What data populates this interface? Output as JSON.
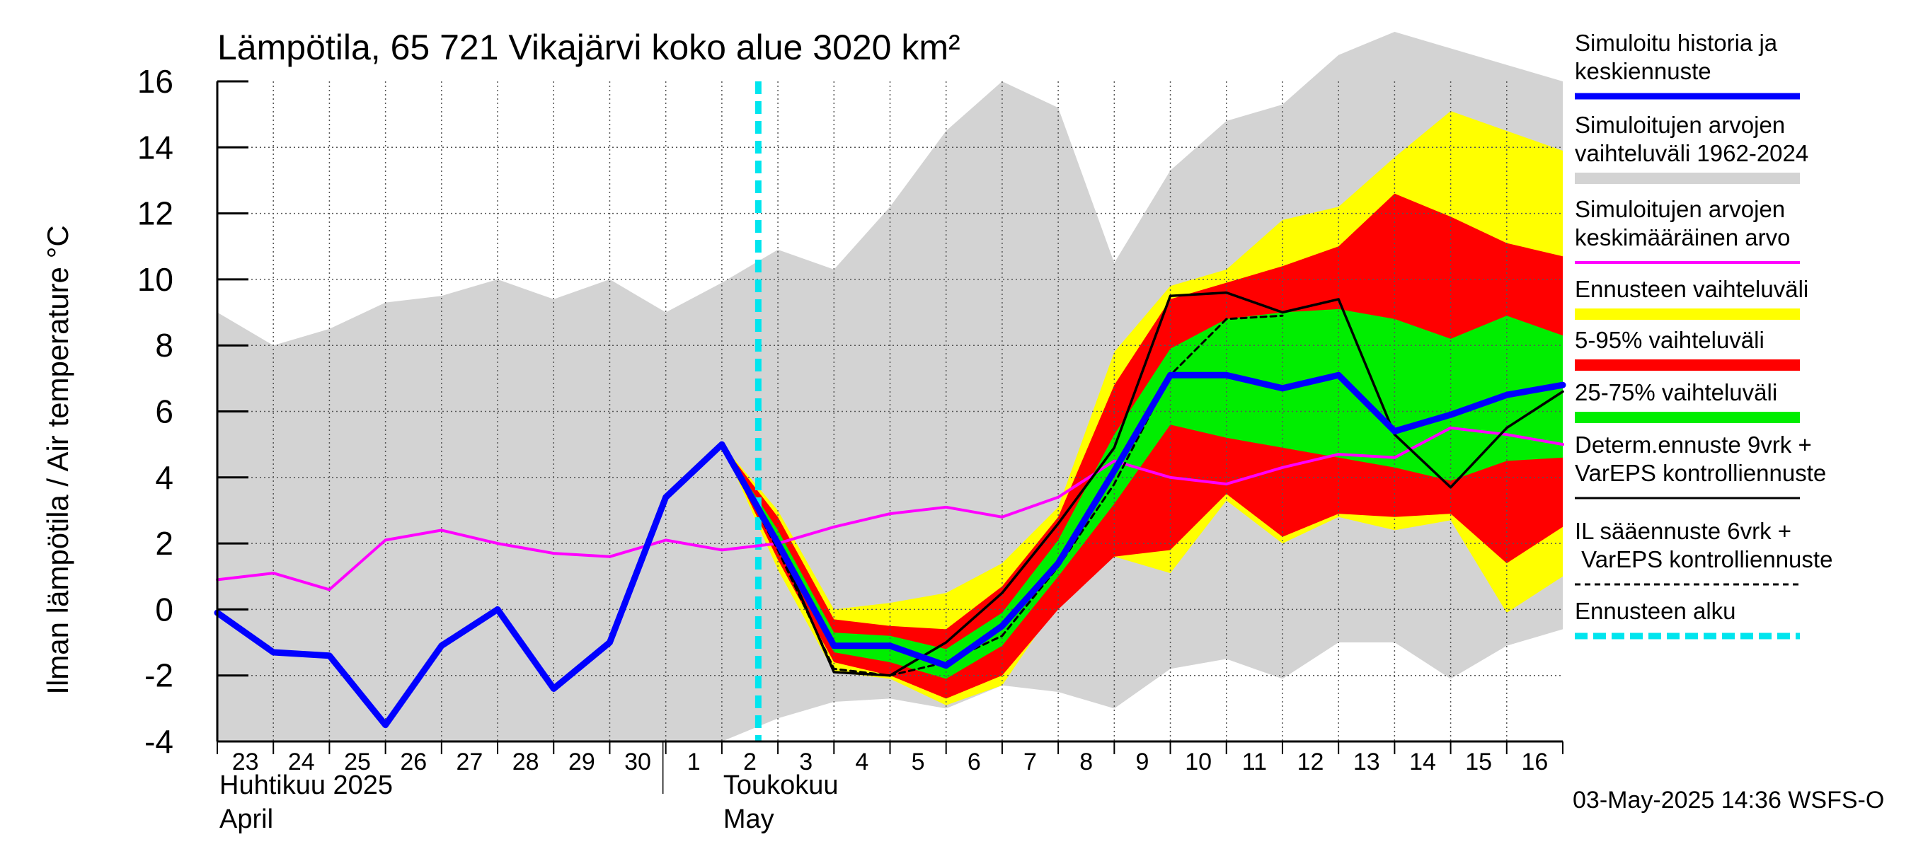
{
  "chart_data": {
    "type": "area",
    "title": "Lämpötila, 65 721 Vikajärvi koko alue 3020 km²",
    "ylabel": "Ilman lämpötila / Air temperature   °C",
    "ylim": [
      -4,
      16
    ],
    "yticks": [
      -4,
      -2,
      0,
      2,
      4,
      6,
      8,
      10,
      12,
      14,
      16
    ],
    "grid": true,
    "legend_position": "right",
    "x_day_labels": [
      "23",
      "24",
      "25",
      "26",
      "27",
      "28",
      "29",
      "30",
      "1",
      "2",
      "3",
      "4",
      "5",
      "6",
      "7",
      "8",
      "9",
      "10",
      "11",
      "12",
      "13",
      "14",
      "15",
      "16"
    ],
    "month_labels": [
      {
        "fi": "Huhtikuu  2025",
        "en": "April"
      },
      {
        "fi": "Toukokuu",
        "en": "May"
      }
    ],
    "forecast_start_index": 10,
    "footer": "03-May-2025 14:36 WSFS-O",
    "series": [
      {
        "name": "Simuloitu historia ja keskiennuste",
        "kind": "line",
        "color": "#0000ff",
        "values": [
          -0.1,
          -1.3,
          -1.4,
          -3.5,
          -1.1,
          0.0,
          -2.4,
          -1.0,
          3.4,
          5.0,
          2.0,
          -1.1,
          -1.1,
          -1.7,
          -0.5,
          1.4,
          4.2,
          7.1,
          7.1,
          6.7,
          7.1,
          5.4,
          5.9,
          6.5,
          6.8
        ]
      },
      {
        "name": "Simuloitujen arvojen vaihteluväli 1962-2024",
        "kind": "band",
        "color": "#d3d3d3",
        "upper": [
          9.0,
          8.0,
          8.5,
          9.3,
          9.5,
          10.0,
          9.4,
          10.0,
          9.0,
          9.9,
          10.9,
          10.3,
          12.2,
          14.5,
          16.0,
          15.2,
          10.5,
          13.3,
          14.8,
          15.3,
          16.8,
          17.5,
          17.0,
          16.5,
          16.0
        ],
        "lower": [
          -4.0,
          -4.0,
          -4.0,
          -4.0,
          -4.0,
          -4.0,
          -4.0,
          -4.0,
          -4.0,
          -4.0,
          -3.3,
          -2.8,
          -2.7,
          -3.0,
          -2.3,
          -2.5,
          -3.0,
          -1.8,
          -1.5,
          -2.1,
          -1.0,
          -1.0,
          -2.1,
          -1.1,
          -0.6
        ]
      },
      {
        "name": "Simuloitujen arvojen keskimääräinen arvo",
        "kind": "line",
        "color": "#ff00ff",
        "values": [
          0.9,
          1.1,
          0.6,
          2.1,
          2.4,
          2.0,
          1.7,
          1.6,
          2.1,
          1.8,
          2.0,
          2.5,
          2.9,
          3.1,
          2.8,
          3.4,
          4.5,
          4.0,
          3.8,
          4.3,
          4.7,
          4.6,
          5.5,
          5.3,
          5.0
        ]
      },
      {
        "name": "Ennusteen vaihteluväli",
        "kind": "band",
        "color": "#ffff00",
        "upper": [
          null,
          null,
          null,
          null,
          null,
          null,
          null,
          null,
          null,
          5.0,
          3.0,
          0.0,
          0.2,
          0.5,
          1.4,
          3.1,
          7.8,
          9.8,
          10.3,
          11.8,
          12.2,
          13.7,
          15.1,
          14.5,
          13.9
        ],
        "lower": [
          null,
          null,
          null,
          null,
          null,
          null,
          null,
          null,
          null,
          5.0,
          1.2,
          -1.9,
          -2.1,
          -2.9,
          -2.3,
          0.2,
          1.6,
          1.1,
          3.3,
          2.0,
          2.8,
          2.4,
          2.7,
          -0.1,
          1.0
        ]
      },
      {
        "name": "5-95% vaihteluväli",
        "kind": "band",
        "color": "#ff0000",
        "upper": [
          null,
          null,
          null,
          null,
          null,
          null,
          null,
          null,
          null,
          5.0,
          2.8,
          -0.3,
          -0.5,
          -0.6,
          0.7,
          2.8,
          6.8,
          9.4,
          9.9,
          10.4,
          11.0,
          12.6,
          11.9,
          11.1,
          10.7
        ],
        "lower": [
          null,
          null,
          null,
          null,
          null,
          null,
          null,
          null,
          null,
          5.0,
          1.5,
          -1.6,
          -2.0,
          -2.7,
          -2.0,
          0.0,
          1.6,
          1.8,
          3.5,
          2.2,
          2.9,
          2.8,
          2.9,
          1.4,
          2.5
        ]
      },
      {
        "name": "25-75% vaihteluväli",
        "kind": "band",
        "color": "#00ee00",
        "upper": [
          null,
          null,
          null,
          null,
          null,
          null,
          null,
          null,
          null,
          5.0,
          2.4,
          -0.7,
          -0.8,
          -1.2,
          -0.1,
          2.1,
          5.3,
          7.9,
          8.8,
          9.0,
          9.1,
          8.8,
          8.2,
          8.9,
          8.3
        ],
        "lower": [
          null,
          null,
          null,
          null,
          null,
          null,
          null,
          null,
          null,
          5.0,
          1.8,
          -1.3,
          -1.6,
          -2.1,
          -1.1,
          1.0,
          3.2,
          5.6,
          5.2,
          4.9,
          4.6,
          4.3,
          3.9,
          4.5,
          4.6
        ]
      },
      {
        "name": "Determ.ennuste 9vrk + VarEPS kontrolliennuste",
        "kind": "line",
        "color": "#000000",
        "values": [
          null,
          null,
          null,
          null,
          null,
          null,
          null,
          null,
          null,
          5.0,
          2.0,
          -1.9,
          -2.0,
          -1.0,
          0.5,
          2.6,
          4.9,
          9.5,
          9.6,
          9.0,
          9.4,
          5.3,
          3.7,
          5.5,
          6.6
        ]
      },
      {
        "name": "IL sääennuste 6vrk  + VarEPS kontrolliennuste",
        "kind": "dashed-line",
        "color": "#000000",
        "values": [
          null,
          null,
          null,
          null,
          null,
          null,
          null,
          null,
          null,
          5.0,
          1.8,
          -1.8,
          -2.0,
          -1.6,
          -0.8,
          1.3,
          3.8,
          7.1,
          8.8,
          8.9,
          null,
          null,
          null,
          null,
          null
        ]
      },
      {
        "name": "Ennusteen alku",
        "kind": "vertical-marker",
        "color": "#00e5ee"
      }
    ]
  }
}
